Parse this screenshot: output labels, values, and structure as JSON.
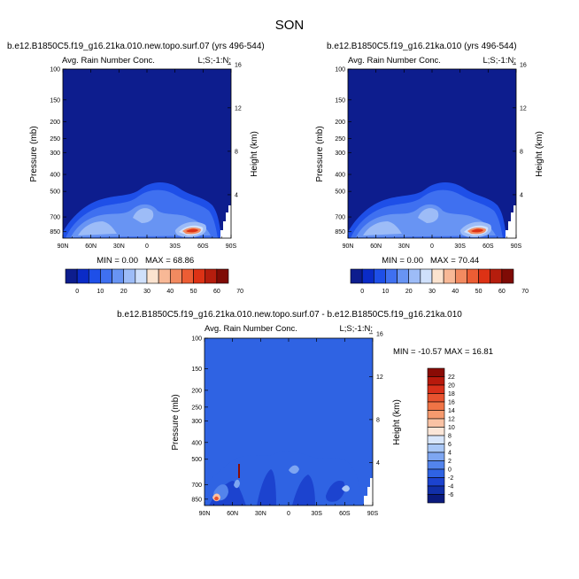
{
  "figure": {
    "title": "SON"
  },
  "chart_data": [
    {
      "type": "heatmap",
      "id": "p1",
      "title": "b.e12.B1850C5.f19_g16.21ka.010.new.topo.surf.07 (yrs 496-544)",
      "left_label": "Avg. Rain Number Conc.",
      "right_label": "L;S;-1:N;",
      "ylabel": "Pressure (mb)",
      "ylabel_right": "Height (km)",
      "x_ticks": [
        "90N",
        "60N",
        "30N",
        "0",
        "30S",
        "60S",
        "90S"
      ],
      "x_values": [
        90,
        60,
        30,
        0,
        -30,
        -60,
        -90
      ],
      "y_ticks": [
        "100",
        "150",
        "200",
        "250",
        "300",
        "400",
        "500",
        "700",
        "850"
      ],
      "y_values": [
        100,
        150,
        200,
        250,
        300,
        400,
        500,
        700,
        850
      ],
      "y_range": [
        100,
        925
      ],
      "y_log": true,
      "y_right_ticks": [
        "4",
        "8",
        "12",
        "16"
      ],
      "y_right_values": [
        4,
        8,
        12,
        16
      ],
      "min_text": "MIN = 0.00",
      "max_text": "MAX = 68.86",
      "background_value": 0,
      "colorbar": {
        "orientation": "horizontal",
        "labels": [
          "0",
          "10",
          "20",
          "30",
          "40",
          "50",
          "60",
          "70"
        ],
        "colors": [
          "#0d1d8e",
          "#0a2bc7",
          "#1e4fe8",
          "#3f70f0",
          "#6894f3",
          "#9dbcf7",
          "#cfe0fb",
          "#fbe3cf",
          "#f8b896",
          "#f28a60",
          "#ec5d34",
          "#dd3215",
          "#b51d0d",
          "#7f0b05"
        ]
      },
      "features": [
        {
          "lat": 60,
          "p": 850,
          "value": 20
        },
        {
          "lat": 45,
          "p": 700,
          "value": 15
        },
        {
          "lat": 15,
          "p": 650,
          "value": 20
        },
        {
          "lat": -10,
          "p": 780,
          "value": 15
        },
        {
          "lat": -32,
          "p": 850,
          "value": 65
        },
        {
          "lat": -55,
          "p": 800,
          "value": 25
        }
      ]
    },
    {
      "type": "heatmap",
      "id": "p2",
      "title": "b.e12.B1850C5.f19_g16.21ka.010 (yrs 496-544)",
      "left_label": "Avg. Rain Number Conc.",
      "right_label": "L;S;-1:N;",
      "ylabel": "Pressure (mb)",
      "ylabel_right": "Height (km)",
      "x_ticks": [
        "90N",
        "60N",
        "30N",
        "0",
        "30S",
        "60S",
        "90S"
      ],
      "x_values": [
        90,
        60,
        30,
        0,
        -30,
        -60,
        -90
      ],
      "y_ticks": [
        "100",
        "150",
        "200",
        "250",
        "300",
        "400",
        "500",
        "700",
        "850"
      ],
      "y_values": [
        100,
        150,
        200,
        250,
        300,
        400,
        500,
        700,
        850
      ],
      "y_range": [
        100,
        925
      ],
      "y_log": true,
      "y_right_ticks": [
        "4",
        "8",
        "12",
        "16"
      ],
      "y_right_values": [
        4,
        8,
        12,
        16
      ],
      "min_text": "MIN = 0.00",
      "max_text": "MAX = 70.44",
      "background_value": 0,
      "colorbar": {
        "orientation": "horizontal",
        "labels": [
          "0",
          "10",
          "20",
          "30",
          "40",
          "50",
          "60",
          "70"
        ],
        "colors": [
          "#0d1d8e",
          "#0a2bc7",
          "#1e4fe8",
          "#3f70f0",
          "#6894f3",
          "#9dbcf7",
          "#cfe0fb",
          "#fbe3cf",
          "#f8b896",
          "#f28a60",
          "#ec5d34",
          "#dd3215",
          "#b51d0d",
          "#7f0b05"
        ]
      },
      "features": [
        {
          "lat": 60,
          "p": 850,
          "value": 20
        },
        {
          "lat": 45,
          "p": 700,
          "value": 15
        },
        {
          "lat": 15,
          "p": 650,
          "value": 20
        },
        {
          "lat": -10,
          "p": 780,
          "value": 15
        },
        {
          "lat": -32,
          "p": 850,
          "value": 68
        },
        {
          "lat": -55,
          "p": 800,
          "value": 25
        }
      ]
    },
    {
      "type": "heatmap",
      "id": "p3",
      "title": "b.e12.B1850C5.f19_g16.21ka.010.new.topo.surf.07 - b.e12.B1850C5.f19_g16.21ka.010",
      "left_label": "Avg. Rain Number Conc.",
      "right_label": "L;S;-1:N;",
      "ylabel": "Pressure (mb)",
      "ylabel_right": "Height (km)",
      "x_ticks": [
        "90N",
        "60N",
        "30N",
        "0",
        "30S",
        "60S",
        "90S"
      ],
      "x_values": [
        90,
        60,
        30,
        0,
        -30,
        -60,
        -90
      ],
      "y_ticks": [
        "100",
        "150",
        "200",
        "250",
        "300",
        "400",
        "500",
        "700",
        "850"
      ],
      "y_values": [
        100,
        150,
        200,
        250,
        300,
        400,
        500,
        700,
        850
      ],
      "y_range": [
        100,
        925
      ],
      "y_log": true,
      "y_right_ticks": [
        "4",
        "8",
        "12",
        "16"
      ],
      "y_right_values": [
        4,
        8,
        12,
        16
      ],
      "min_max_text": "MIN = -10.57  MAX =  16.81",
      "background_value": 0,
      "colorbar": {
        "orientation": "vertical",
        "labels": [
          "22",
          "20",
          "18",
          "16",
          "14",
          "12",
          "10",
          "8",
          "6",
          "4",
          "2",
          "0",
          "-2",
          "-4",
          "-6"
        ],
        "colors": [
          "#8a0b05",
          "#b8190c",
          "#d9301a",
          "#e8532f",
          "#f07446",
          "#f69a6e",
          "#f9c2a4",
          "#fbe6d8",
          "#d8e6fb",
          "#a9c7f6",
          "#7ea6f1",
          "#5384ec",
          "#2f63e3",
          "#1c43cf",
          "#112fa8",
          "#0a1a7d"
        ]
      },
      "features": [
        {
          "lat": 75,
          "p": 850,
          "value": 16
        },
        {
          "lat": 55,
          "p": 750,
          "value": -6
        },
        {
          "lat": 40,
          "p": 600,
          "value": 2
        },
        {
          "lat": 10,
          "p": 650,
          "value": -4
        },
        {
          "lat": -20,
          "p": 750,
          "value": -2
        },
        {
          "lat": -60,
          "p": 800,
          "value": 4
        }
      ]
    }
  ]
}
